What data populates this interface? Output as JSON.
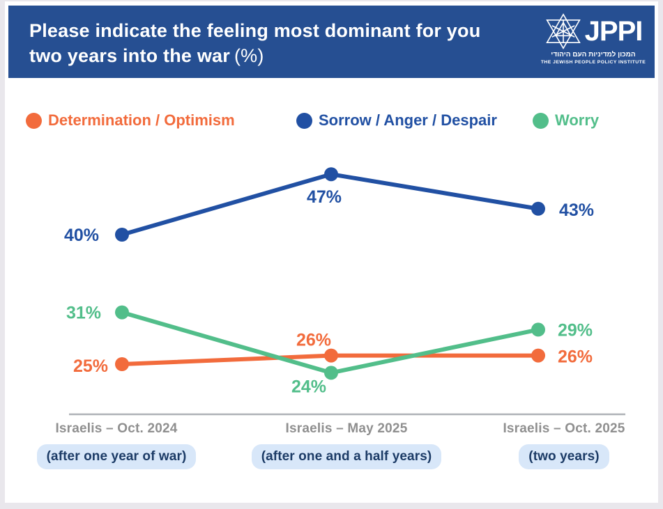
{
  "header": {
    "title_line1": "Please indicate the feeling most dominant for you",
    "title_line2": "two years into the war",
    "title_suffix": "(%)",
    "logo": {
      "acronym": "JPPI",
      "hebrew": "המכון למדיניות העם היהודי",
      "english": "THE JEWISH PEOPLE POLICY INSTITUTE"
    }
  },
  "legend": [
    {
      "label": "Determination / Optimism",
      "color": "#F26B3C"
    },
    {
      "label": "Sorrow / Anger / Despair",
      "color": "#2150A3"
    },
    {
      "label": "Worry",
      "color": "#52BE8A"
    }
  ],
  "chart_data": {
    "type": "line",
    "title": "Please indicate the feeling most dominant for you two years into the war (%)",
    "categories": [
      "Israelis – Oct. 2024",
      "Israelis – May 2025",
      "Israelis – Oct. 2025"
    ],
    "category_notes": [
      "(after one year of war)",
      "(after one and a half years)",
      "(two years)"
    ],
    "series": [
      {
        "name": "Determination / Optimism",
        "color": "#F26B3C",
        "values": [
          25,
          26,
          26
        ]
      },
      {
        "name": "Sorrow / Anger / Despair",
        "color": "#2150A3",
        "values": [
          40,
          47,
          43
        ]
      },
      {
        "name": "Worry",
        "color": "#52BE8A",
        "values": [
          31,
          24,
          29
        ]
      }
    ],
    "value_suffix": "%",
    "ylim": [
      19,
      50
    ],
    "grid": false,
    "legend_position": "top",
    "data_labels": true
  },
  "colors": {
    "header_bg": "#264F92",
    "page_bg": "#E9E7EC",
    "card_bg": "#FFFFFF",
    "axis_line": "#AEB1B6",
    "category_label": "#8F8F8F",
    "pill_bg": "#D8E7F9",
    "pill_text": "#1C3B66"
  }
}
